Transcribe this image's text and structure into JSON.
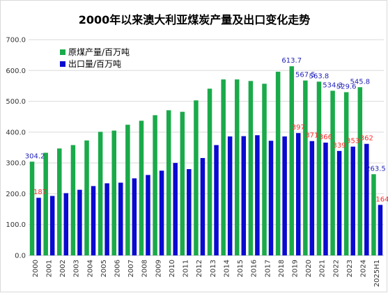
{
  "chart_data": {
    "type": "bar",
    "title": "2000年以来澳大利亚煤炭产量及出口变化走势",
    "categories": [
      "2000",
      "2001",
      "2002",
      "2003",
      "2004",
      "2005",
      "2006",
      "2007",
      "2008",
      "2009",
      "2010",
      "2011",
      "2012",
      "2013",
      "2014",
      "2015",
      "2016",
      "2017",
      "2018",
      "2019",
      "2020",
      "2021",
      "2022",
      "2023",
      "2024",
      "2025H1"
    ],
    "series": [
      {
        "name": "原煤产量/百万吨",
        "color": "#1aaa4a",
        "values": [
          304.2,
          333,
          347,
          358,
          373,
          401,
          405,
          424,
          437,
          455,
          471,
          466,
          503,
          541,
          571,
          571,
          566,
          557,
          596,
          613.7,
          567.5,
          563.8,
          534.3,
          529.6,
          545.8,
          263.5
        ],
        "labels": {
          "0": "304.2",
          "19": "613.7",
          "20": "567.5",
          "21": "563.8",
          "22": "534.3",
          "23": "529.6",
          "24": "545.8",
          "25": "263.5"
        },
        "label_color": "#1f1fb8"
      },
      {
        "name": "出口量/百万吨",
        "color": "#0a0ad0",
        "values": [
          187,
          193,
          202,
          213,
          225,
          234,
          236,
          250,
          261,
          275,
          300,
          280,
          316,
          358,
          386,
          387,
          390,
          372,
          386,
          397,
          371,
          366,
          339,
          353,
          362,
          164
        ],
        "labels": {
          "0": "187",
          "19": "397",
          "20": "371",
          "21": "366",
          "22": "339",
          "23": "353",
          "24": "362",
          "25": "164"
        },
        "label_color": "#ff2a2a"
      }
    ],
    "ylim": [
      0,
      700
    ],
    "yticks": [
      "0.0",
      "100.0",
      "200.0",
      "300.0",
      "400.0",
      "500.0",
      "600.0",
      "700.0"
    ],
    "grid": true,
    "legend_position": "top-left"
  }
}
